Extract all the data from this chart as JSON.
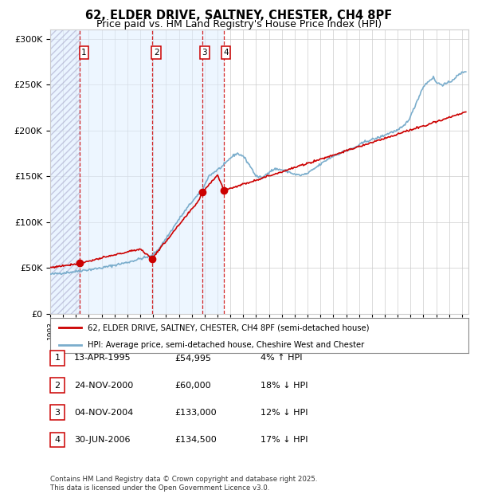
{
  "title": "62, ELDER DRIVE, SALTNEY, CHESTER, CH4 8PF",
  "subtitle": "Price paid vs. HM Land Registry's House Price Index (HPI)",
  "legend_line1": "62, ELDER DRIVE, SALTNEY, CHESTER, CH4 8PF (semi-detached house)",
  "legend_line2": "HPI: Average price, semi-detached house, Cheshire West and Chester",
  "footer": "Contains HM Land Registry data © Crown copyright and database right 2025.\nThis data is licensed under the Open Government Licence v3.0.",
  "transactions": [
    {
      "num": 1,
      "date": "13-APR-1995",
      "price": 54995,
      "pct": "4%",
      "dir": "↑",
      "year": 1995.28
    },
    {
      "num": 2,
      "date": "24-NOV-2000",
      "price": 60000,
      "pct": "18%",
      "dir": "↓",
      "year": 2000.9
    },
    {
      "num": 3,
      "date": "04-NOV-2004",
      "price": 133000,
      "pct": "12%",
      "dir": "↓",
      "year": 2004.84
    },
    {
      "num": 4,
      "date": "30-JUN-2006",
      "price": 134500,
      "pct": "17%",
      "dir": "↓",
      "year": 2006.5
    }
  ],
  "red_line_color": "#cc0000",
  "blue_line_color": "#7aadcc",
  "vline_color": "#cc0000",
  "shade_color": "#ddeeff",
  "grid_color": "#cccccc",
  "ylim": [
    0,
    310000
  ],
  "xlim_start": 1993.0,
  "xlim_end": 2025.5,
  "background_color": "#ffffff",
  "title_fontsize": 11,
  "subtitle_fontsize": 10
}
